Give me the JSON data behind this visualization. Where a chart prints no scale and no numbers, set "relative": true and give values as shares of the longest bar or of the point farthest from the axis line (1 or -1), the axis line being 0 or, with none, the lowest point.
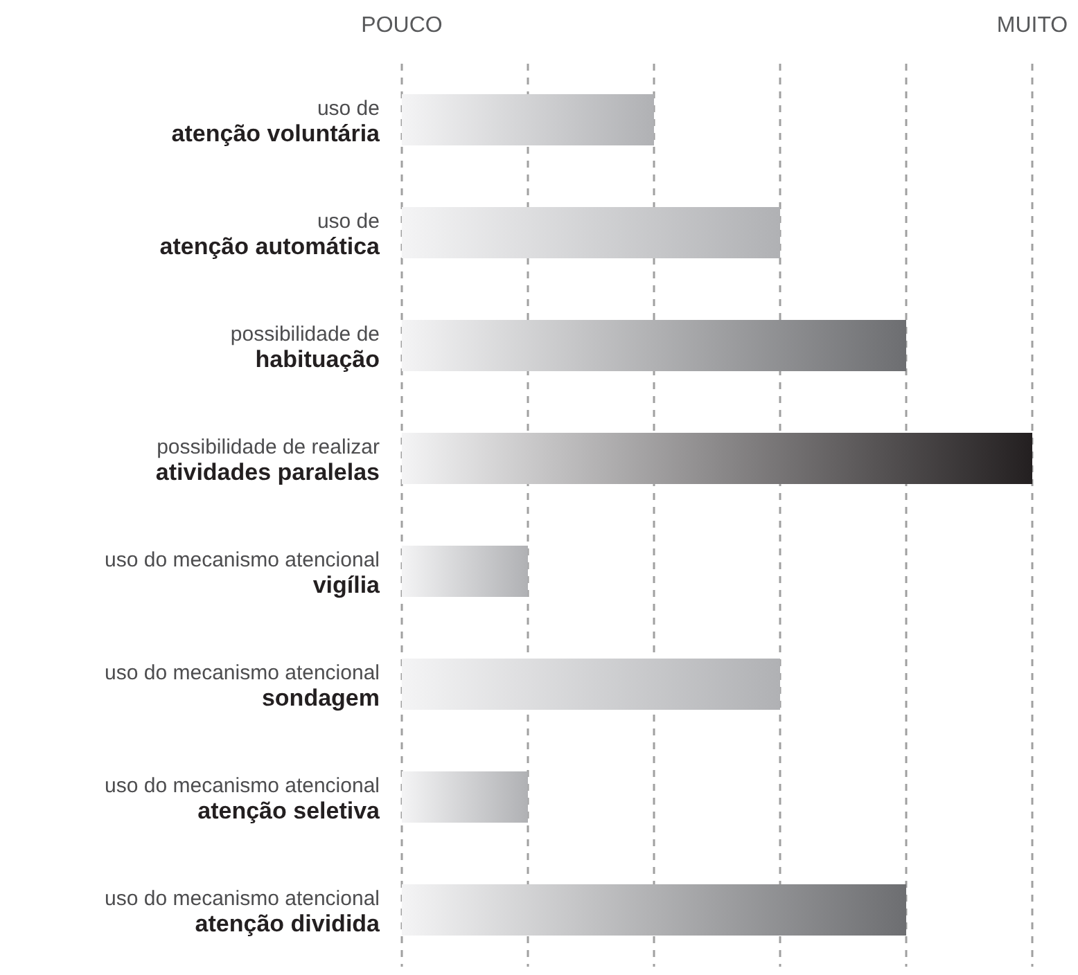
{
  "chart_data": {
    "type": "bar",
    "orientation": "horizontal",
    "relative": true,
    "grid": "x",
    "categories": [
      "uso de\natenção voluntária",
      "uso de\natenção automática",
      "possibilidade de\nhabituação",
      "possibilidade de realizar\natividades paralelas",
      "uso do mecanismo atencional\nvigília",
      "uso do mecanismo atencional\nsondagem",
      "uso do mecanismo atencional\natenção seletiva",
      "uso do mecanismo atencional\natenção dividida"
    ],
    "values": [
      0.4,
      0.6,
      0.8,
      1,
      0.2,
      0.6,
      0.2,
      0.8
    ],
    "colors": [
      "#b0b1b4",
      "#b0b1b4",
      "#6d6e71",
      "#231f20",
      "#b0b1b4",
      "#b0b1b4",
      "#b0b1b4",
      "#6d6e71"
    ],
    "annotations": [
      "POUCO",
      "MUITO"
    ]
  }
}
